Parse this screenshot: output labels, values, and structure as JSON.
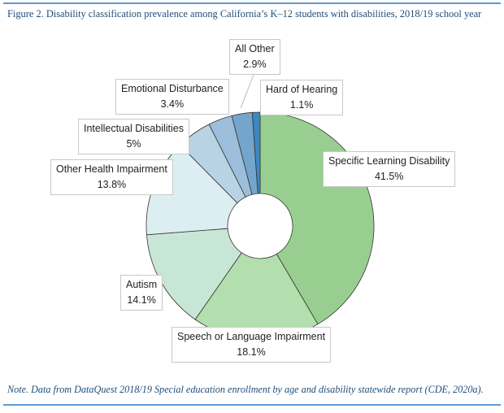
{
  "caption": "Figure 2. Disability classification prevalence among California’s K–12 students with disabilities, 2018/19 school year",
  "note": "Note. Data from DataQuest 2018/19 Special education enrollment by age and disability statewide report (CDE, 2020a).",
  "chart_data": {
    "type": "pie",
    "variant": "donut",
    "start": "top, clockwise",
    "categories": [
      "Specific Learning Disability",
      "Speech or Language Impairment",
      "Autism",
      "Other Health Impairment",
      "Intellectual Disabilities",
      "Emotional Disturbance",
      "All Other",
      "Hard of Hearing"
    ],
    "values": [
      41.5,
      18.1,
      14.1,
      13.8,
      5,
      3.4,
      2.9,
      1.1
    ],
    "value_labels": [
      "41.5%",
      "18.1%",
      "14.1%",
      "13.8%",
      "5%",
      "3.4%",
      "2.9%",
      "1.1%"
    ],
    "colors": [
      "#98cf90",
      "#b3deae",
      "#c8e6d6",
      "#dceef2",
      "#b9d3e4",
      "#9dbedb",
      "#74a5cd",
      "#3d88bf"
    ]
  }
}
